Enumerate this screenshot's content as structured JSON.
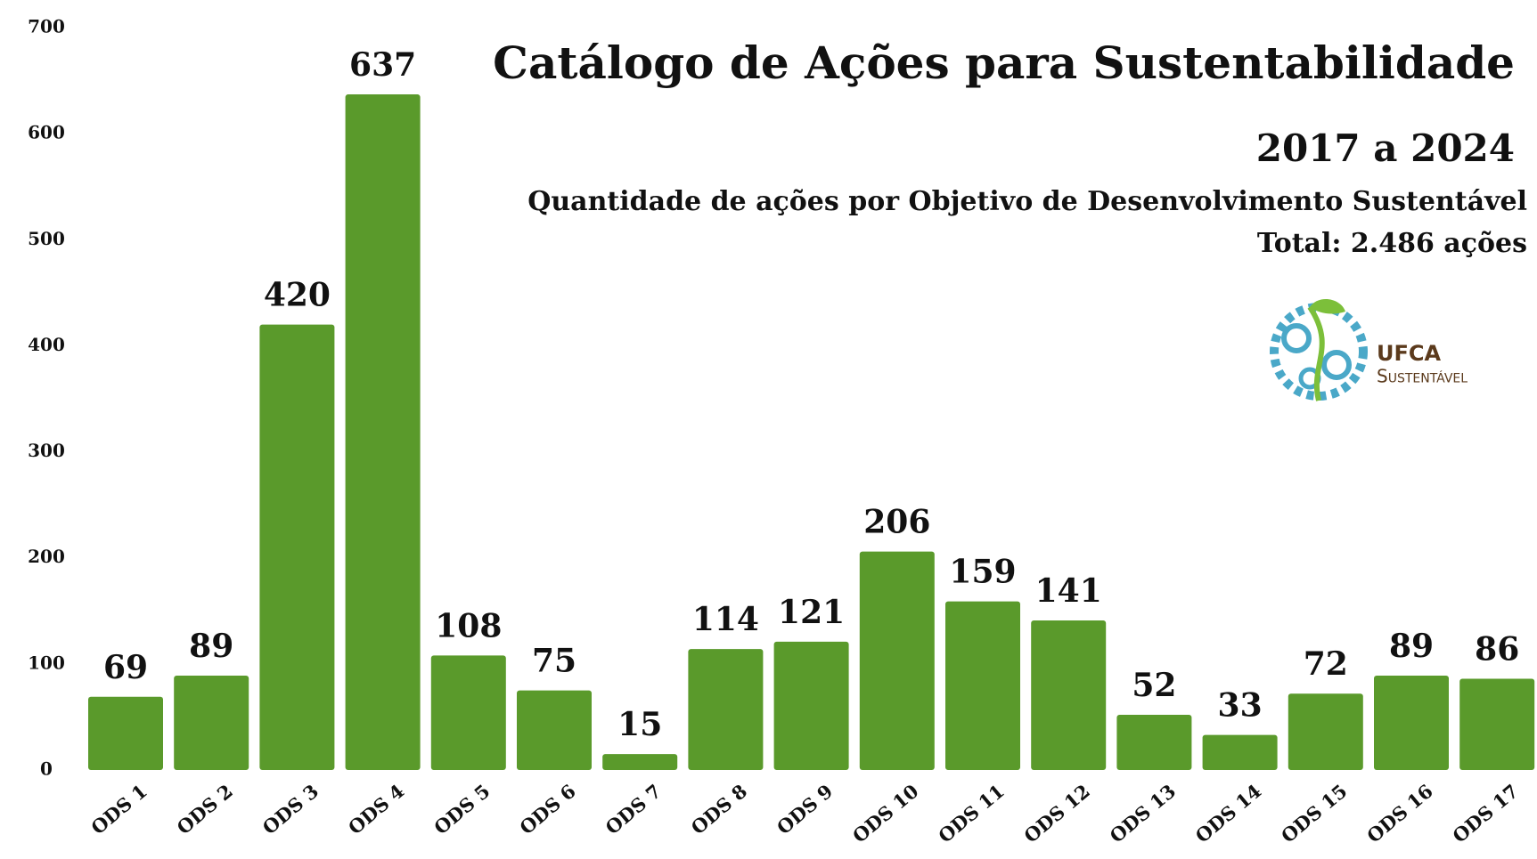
{
  "chart_data": {
    "type": "bar",
    "title": "Catálogo de Ações para Sustentabilidade",
    "subtitle": "2017 a 2024",
    "description": "Quantidade de ações por Objetivo de Desenvolvimento Sustentável",
    "total": "Total: 2.486 ações",
    "logo": {
      "name": "UFCA",
      "tagline": "Sustentável"
    },
    "categories": [
      "ODS 1",
      "ODS 2",
      "ODS 3",
      "ODS 4",
      "ODS 5",
      "ODS 6",
      "ODS 7",
      "ODS 8",
      "ODS 9",
      "ODS 10",
      "ODS 11",
      "ODS 12",
      "ODS 13",
      "ODS 14",
      "ODS 15",
      "ODS 16",
      "ODS 17"
    ],
    "values": [
      69,
      89,
      420,
      637,
      108,
      75,
      15,
      114,
      121,
      206,
      159,
      141,
      52,
      33,
      72,
      89,
      86
    ],
    "color": "#5a9a2b",
    "ylim": [
      0,
      700
    ],
    "yticks": [
      0,
      100,
      200,
      300,
      400,
      500,
      600,
      700
    ],
    "grid": false
  }
}
